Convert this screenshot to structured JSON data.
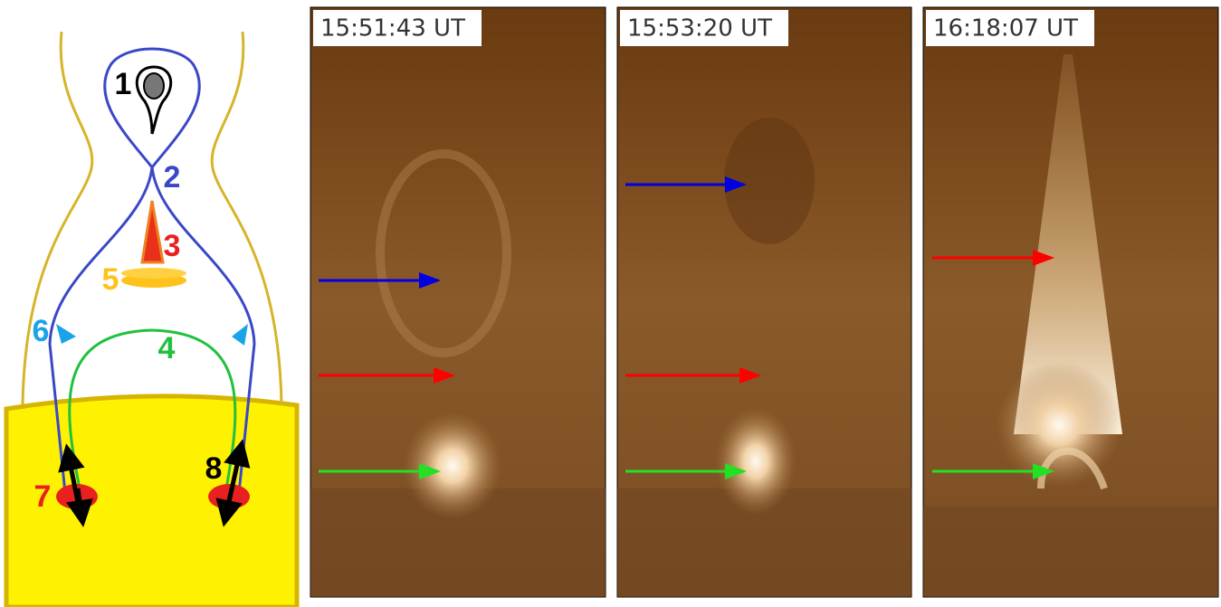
{
  "diagram": {
    "labels": [
      "1",
      "2",
      "3",
      "4",
      "5",
      "6",
      "7",
      "8"
    ]
  },
  "panels": [
    {
      "time": "15:51:43 UT"
    },
    {
      "time": "15:53:20 UT"
    },
    {
      "time": "16:18:07 UT"
    }
  ]
}
